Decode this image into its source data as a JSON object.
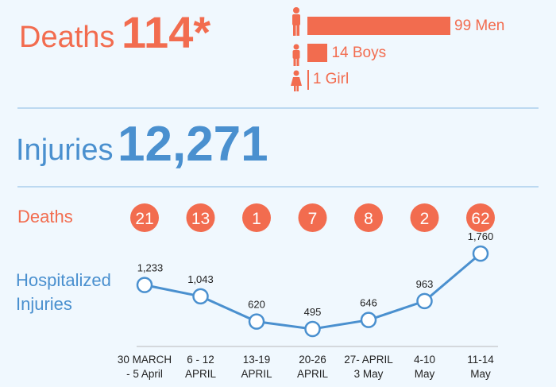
{
  "colors": {
    "deaths": "#f26c4f",
    "injuries": "#4a90cf",
    "background": "#f0f8fe"
  },
  "header": {
    "deaths_label": "Deaths",
    "deaths_total": "114*",
    "injuries_label": "Injuries",
    "injuries_total": "12,271"
  },
  "breakdown": [
    {
      "icon": "man-icon",
      "label": "99 Men",
      "value": 99
    },
    {
      "icon": "boy-icon",
      "label": "14 Boys",
      "value": 14
    },
    {
      "icon": "girl-icon",
      "label": "1 Girl",
      "value": 1
    }
  ],
  "chart_data": {
    "type": "line",
    "categories": [
      [
        "30 MARCH",
        "- 5 April"
      ],
      [
        "6 - 12",
        "APRIL"
      ],
      [
        "13-19",
        "APRIL"
      ],
      [
        "20-26",
        "APRIL"
      ],
      [
        "27- APRIL",
        "3 May"
      ],
      [
        "4-10",
        "May"
      ],
      [
        "11-14",
        "May"
      ]
    ],
    "deaths_row_label": "Deaths",
    "deaths": [
      21,
      13,
      1,
      7,
      8,
      2,
      62
    ],
    "series": [
      {
        "name": "Hospitalized Injuries",
        "name_lines": [
          "Hospitalized",
          "Injuries"
        ],
        "values": [
          1233,
          1043,
          620,
          495,
          646,
          963,
          1760
        ],
        "labels": [
          "1,233",
          "1,043",
          "620",
          "495",
          "646",
          "963",
          "1,760"
        ]
      }
    ]
  }
}
